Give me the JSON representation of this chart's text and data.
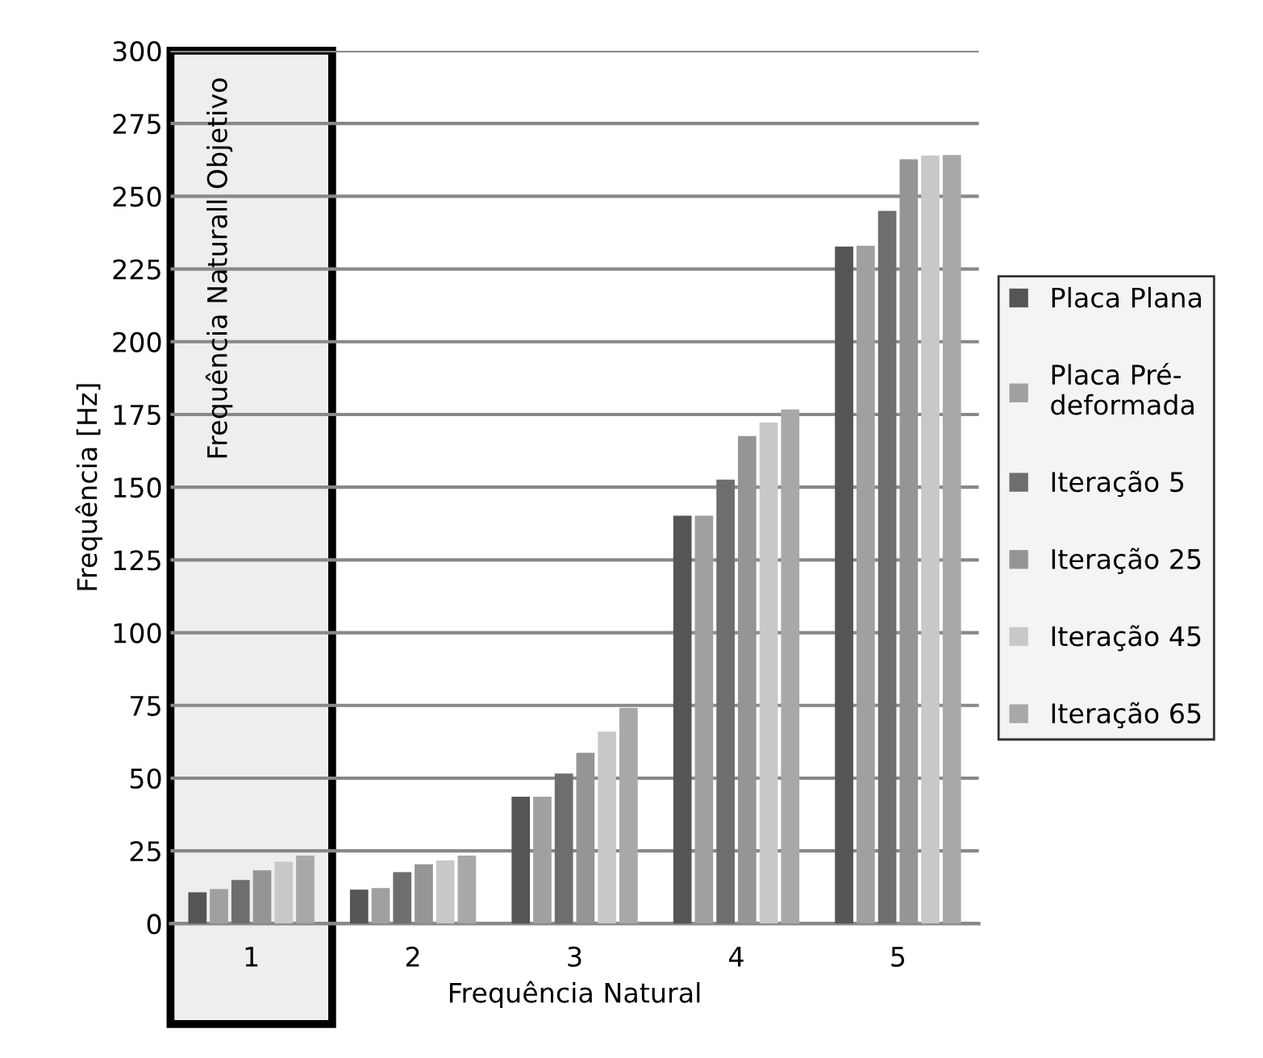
{
  "chart_data": {
    "type": "bar",
    "xlabel": "Frequência Natural",
    "ylabel": "Frequência [Hz]",
    "categories": [
      "1",
      "2",
      "3",
      "4",
      "5"
    ],
    "series": [
      {
        "name": "Placa Plana",
        "color": "#555555",
        "values": [
          10.8,
          11.7,
          43.6,
          140.2,
          232.7
        ]
      },
      {
        "name": "Placa Pré-\ndeformada",
        "color": "#a0a0a0",
        "values": [
          11.9,
          12.2,
          43.6,
          140.2,
          233
        ]
      },
      {
        "name": "Iteração 5",
        "color": "#6e6e6e",
        "values": [
          15,
          17.7,
          51.6,
          152.6,
          245
        ]
      },
      {
        "name": "Iteração 25",
        "color": "#959595",
        "values": [
          18.3,
          20.4,
          58.7,
          167.6,
          262.7
        ]
      },
      {
        "name": "Iteração 45",
        "color": "#c8c8c8",
        "values": [
          21.3,
          21.7,
          66,
          172.2,
          264
        ]
      },
      {
        "name": "Iteração 65",
        "color": "#a8a8a8",
        "values": [
          23.4,
          23.4,
          74.2,
          176.7,
          264.2
        ]
      }
    ],
    "ylim": [
      0,
      300
    ],
    "yticks": [
      0,
      25,
      50,
      75,
      100,
      125,
      150,
      175,
      200,
      225,
      250,
      275,
      300
    ],
    "grid": "y",
    "legend": "right",
    "bands": [
      {
        "axis": "x",
        "from": "1",
        "to": "1",
        "label": "Frequência Naturall Objetivo",
        "color": "#eeeeee"
      }
    ]
  }
}
